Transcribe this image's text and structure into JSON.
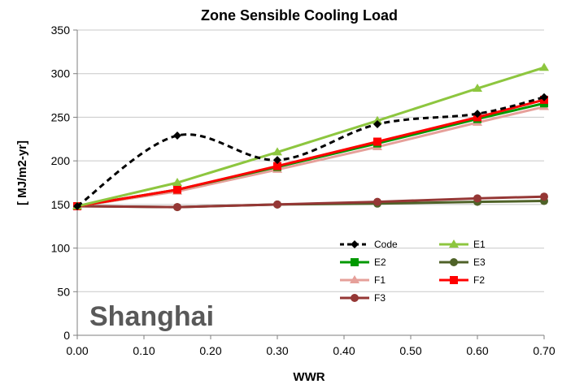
{
  "chart_data": {
    "type": "line",
    "title": "Zone Sensible Cooling Load",
    "xlabel": "WWR",
    "ylabel": "[ MJ/m2-yr]",
    "annotation": "Shanghai",
    "xlim": [
      0,
      0.7
    ],
    "ylim": [
      0,
      350
    ],
    "x_ticks": [
      "0.00",
      "0.10",
      "0.20",
      "0.30",
      "0.40",
      "0.50",
      "0.60",
      "0.70"
    ],
    "y_ticks": [
      "0",
      "50",
      "100",
      "150",
      "200",
      "250",
      "300",
      "350"
    ],
    "grid": "horizontal",
    "legend_position": "bottom-right",
    "x": [
      0.0,
      0.15,
      0.3,
      0.45,
      0.6,
      0.7
    ],
    "series": [
      {
        "name": "Code",
        "color": "#000000",
        "marker": "diamond",
        "dashed": true,
        "values": [
          148,
          229,
          201,
          242,
          254,
          273
        ]
      },
      {
        "name": "E1",
        "color": "#8dc63f",
        "marker": "triangle",
        "dashed": false,
        "values": [
          148,
          175,
          210,
          246,
          283,
          307
        ]
      },
      {
        "name": "E2",
        "color": "#009900",
        "marker": "square",
        "dashed": false,
        "values": [
          148,
          167,
          193,
          220,
          248,
          266
        ]
      },
      {
        "name": "E3",
        "color": "#4f6228",
        "marker": "circle",
        "dashed": false,
        "values": [
          148,
          147,
          150,
          151,
          153,
          154
        ]
      },
      {
        "name": "F1",
        "color": "#e6a09a",
        "marker": "triangle",
        "dashed": false,
        "values": [
          148,
          165,
          190,
          216,
          244,
          262
        ]
      },
      {
        "name": "F2",
        "color": "#ff0000",
        "marker": "square",
        "dashed": false,
        "values": [
          148,
          167,
          194,
          222,
          250,
          270
        ]
      },
      {
        "name": "F3",
        "color": "#953735",
        "marker": "circle",
        "dashed": false,
        "values": [
          148,
          147,
          150,
          153,
          157,
          159
        ]
      }
    ]
  }
}
